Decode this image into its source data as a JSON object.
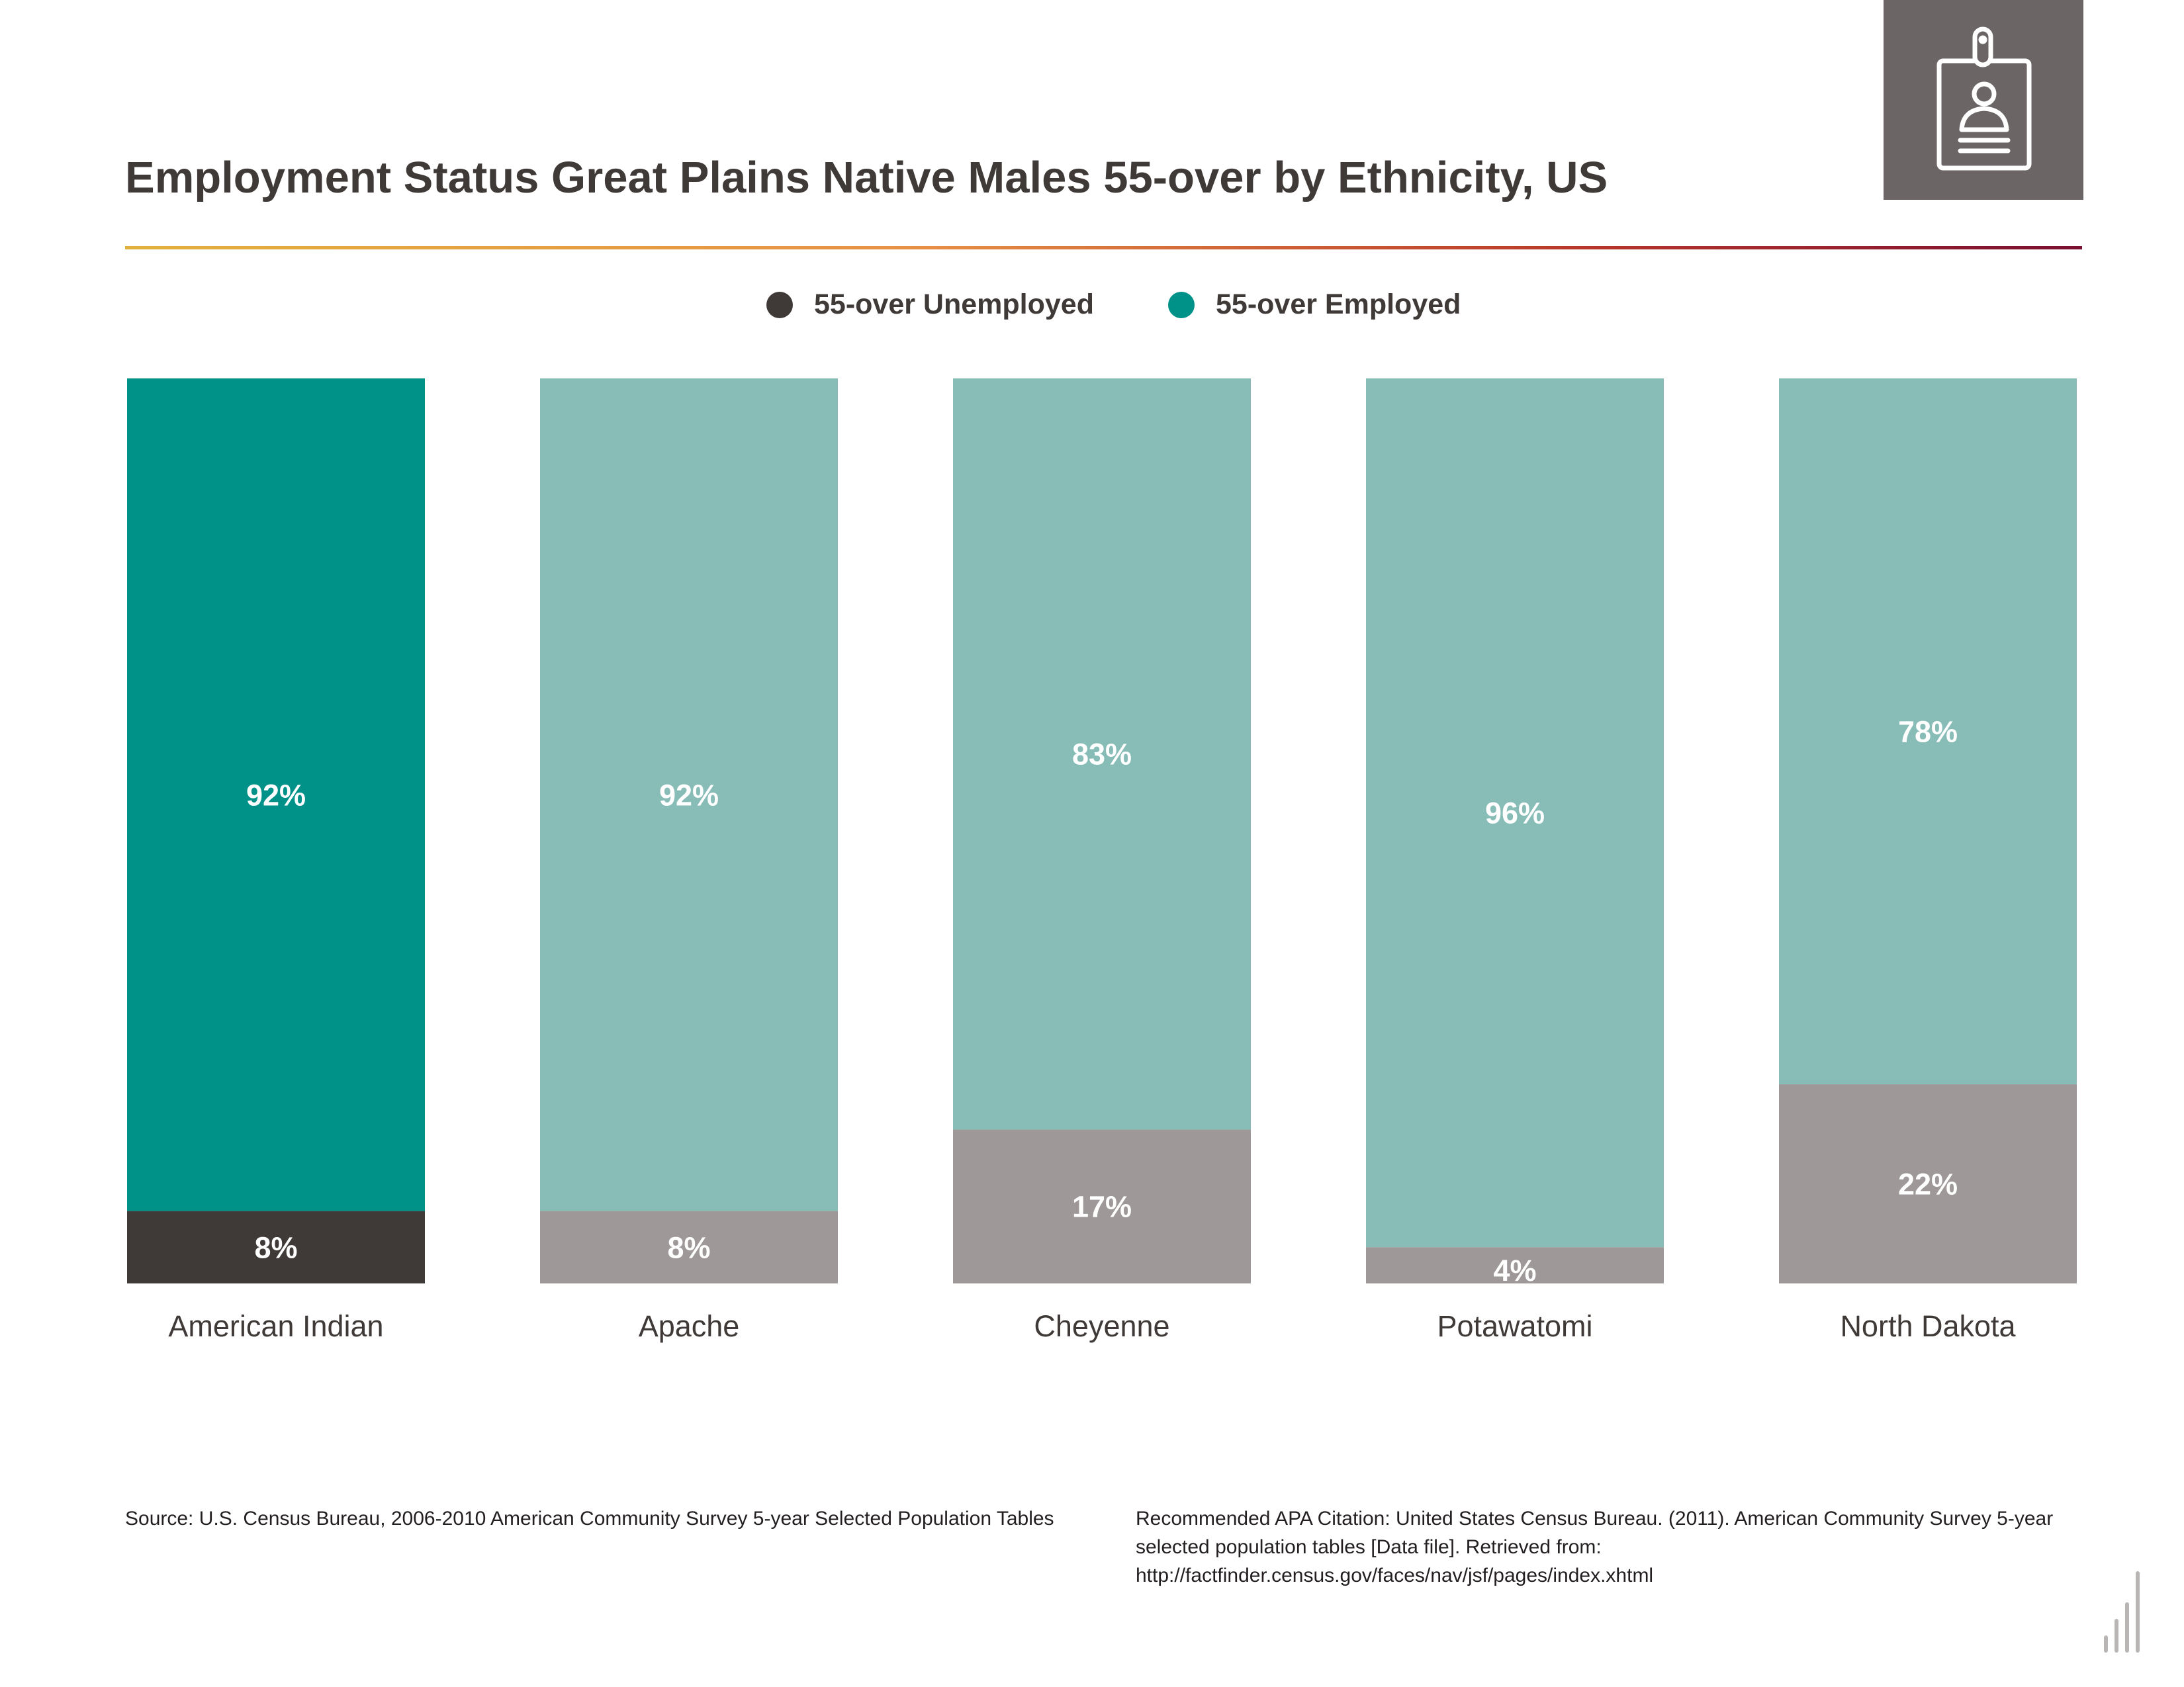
{
  "title": "Employment Status Great Plains Native Males 55-over by Ethnicity, US",
  "legend": [
    {
      "label": "55-over Unemployed",
      "color": "#3f3a38"
    },
    {
      "label": "55-over Employed",
      "color": "#009188"
    }
  ],
  "icon": "id-badge-icon",
  "colors": {
    "employed_highlight": "#009188",
    "unemployed_highlight": "#3f3a38",
    "employed": "#88bdb7",
    "unemployed": "#9e9998",
    "label": "#ffffff",
    "category_label": "#3f3a38"
  },
  "chart_data": {
    "type": "bar",
    "stacked": true,
    "title": "Employment Status Great Plains Native Males 55-over by Ethnicity, US",
    "categories": [
      "American Indian",
      "Apache",
      "Cheyenne",
      "Potawatomi",
      "North Dakota"
    ],
    "highlight_category": "American Indian",
    "series": [
      {
        "name": "55-over Unemployed",
        "values": [
          8,
          8,
          17,
          4,
          22
        ]
      },
      {
        "name": "55-over Employed",
        "values": [
          92,
          92,
          83,
          96,
          78
        ]
      }
    ],
    "data_labels": {
      "55-over Unemployed": [
        "8%",
        "8%",
        "17%",
        "4%",
        "22%"
      ],
      "55-over Employed": [
        "92%",
        "92%",
        "83%",
        "96%",
        "78%"
      ]
    },
    "ylim": [
      0,
      100
    ],
    "grid": false,
    "legend_position": "top-center"
  },
  "footer": {
    "source": "Source:  U.S. Census Bureau, 2006-2010 American Community Survey 5-year Selected Population Tables",
    "citation": "Recommended APA Citation: United States Census Bureau. (2011). American Community Survey 5-year selected population tables [Data file]. Retrieved from: http://factfinder.census.gov/faces/nav/jsf/pages/index.xhtml"
  }
}
